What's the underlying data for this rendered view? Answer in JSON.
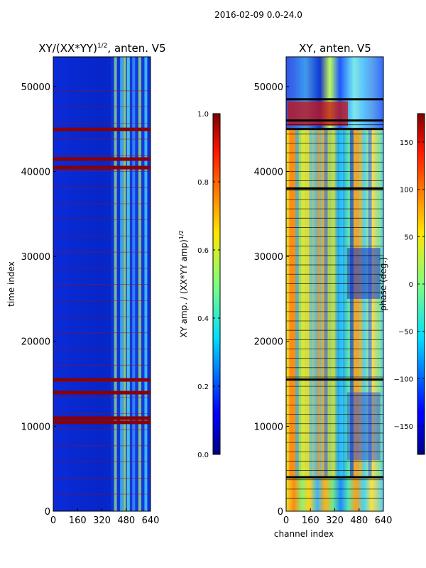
{
  "figure": {
    "suptitle": "2016-02-09 0.0-24.0",
    "shared_xlabel": "channel index"
  },
  "chart_data": [
    {
      "type": "heatmap",
      "title_main": "XY/(XX*YY)",
      "title_sup": "1/2",
      "title_rest": ", anten. V5",
      "xlabel": "",
      "ylabel": "time index",
      "xlim": [
        0,
        640
      ],
      "ylim": [
        0,
        53500
      ],
      "xticks": [
        "0",
        "160",
        "320",
        "480",
        "640"
      ],
      "yticks": [
        "0",
        "10000",
        "20000",
        "30000",
        "40000",
        "50000"
      ],
      "colorbar": {
        "label_main": "XY amp. / (XX*YY amp)",
        "label_sup": "1/2",
        "range": [
          0.0,
          1.0
        ],
        "ticks": [
          "0.0",
          "0.2",
          "0.4",
          "0.6",
          "0.8",
          "1.0"
        ],
        "colormap": "jet"
      },
      "band_columns": [
        400,
        440,
        460,
        485,
        520,
        560,
        600
      ],
      "flagged_rows_red": [
        45000,
        41500,
        40500,
        15500,
        14000,
        11000,
        10500
      ]
    },
    {
      "type": "heatmap",
      "title_main": "XY, anten. V5",
      "xlabel": "channel index",
      "ylabel": "",
      "xlim": [
        0,
        640
      ],
      "ylim": [
        0,
        53500
      ],
      "xticks": [
        "0",
        "160",
        "320",
        "480",
        "640"
      ],
      "yticks": [
        "0",
        "10000",
        "20000",
        "30000",
        "40000",
        "50000"
      ],
      "colorbar": {
        "label_main": "phase (deg.)",
        "range": [
          -180,
          180
        ],
        "ticks": [
          "-150",
          "-100",
          "-50",
          "0",
          "50",
          "100",
          "150"
        ],
        "colormap": "jet"
      },
      "flagged_rows_black": [
        48500,
        46000,
        45000,
        38000,
        15500,
        4000
      ]
    }
  ]
}
